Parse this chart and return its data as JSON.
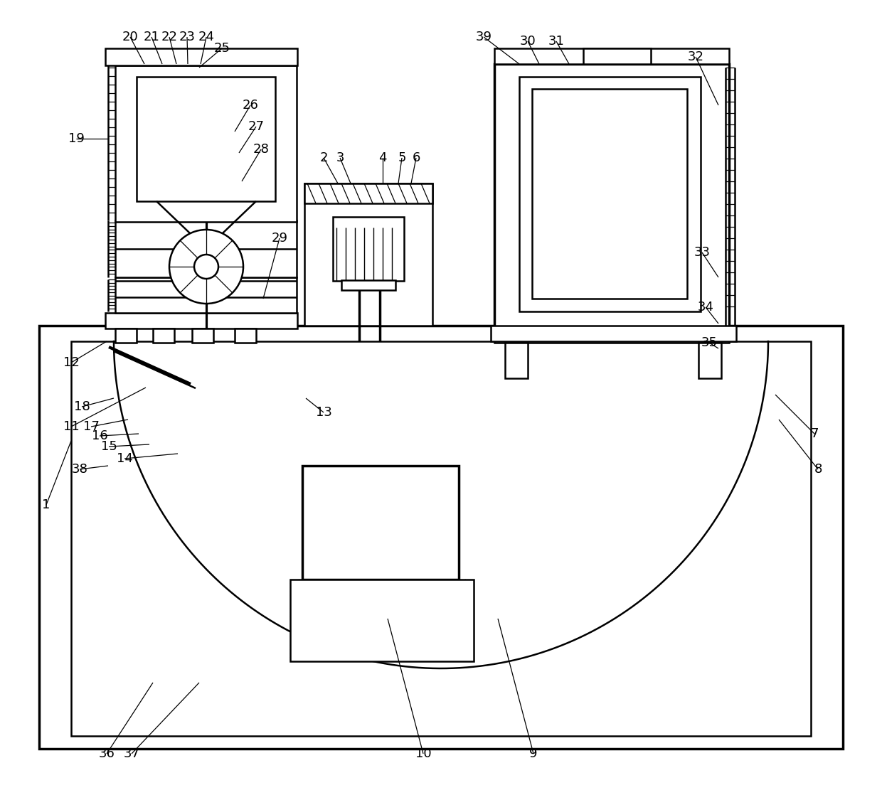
{
  "bg": "#ffffff",
  "lc": "#000000",
  "lw": 1.8,
  "tlw": 2.5,
  "fs": 13,
  "fw": 12.4,
  "fh": 11.11,
  "annotations": [
    [
      "1",
      65,
      710,
      100,
      620
    ],
    [
      "2",
      455,
      222,
      475,
      258
    ],
    [
      "3",
      478,
      222,
      493,
      258
    ],
    [
      "4",
      538,
      222,
      538,
      258
    ],
    [
      "5",
      565,
      222,
      560,
      258
    ],
    [
      "6",
      585,
      222,
      578,
      258
    ],
    [
      "7",
      1145,
      610,
      1090,
      555
    ],
    [
      "8",
      1150,
      660,
      1095,
      590
    ],
    [
      "9",
      750,
      1060,
      700,
      870
    ],
    [
      "10",
      595,
      1060,
      545,
      870
    ],
    [
      "11",
      100,
      600,
      205,
      545
    ],
    [
      "12",
      100,
      510,
      150,
      480
    ],
    [
      "13",
      455,
      580,
      430,
      560
    ],
    [
      "14",
      175,
      645,
      250,
      638
    ],
    [
      "15",
      153,
      628,
      210,
      625
    ],
    [
      "16",
      140,
      613,
      195,
      610
    ],
    [
      "17",
      128,
      600,
      180,
      590
    ],
    [
      "18",
      115,
      572,
      160,
      560
    ],
    [
      "19",
      107,
      195,
      152,
      195
    ],
    [
      "20",
      183,
      52,
      203,
      90
    ],
    [
      "21",
      213,
      52,
      228,
      90
    ],
    [
      "22",
      238,
      52,
      248,
      90
    ],
    [
      "23",
      263,
      52,
      264,
      90
    ],
    [
      "24",
      290,
      52,
      282,
      90
    ],
    [
      "25",
      312,
      68,
      280,
      95
    ],
    [
      "26",
      352,
      148,
      330,
      185
    ],
    [
      "27",
      360,
      178,
      336,
      215
    ],
    [
      "28",
      367,
      210,
      340,
      255
    ],
    [
      "29",
      393,
      335,
      370,
      420
    ],
    [
      "30",
      742,
      58,
      758,
      90
    ],
    [
      "31",
      782,
      58,
      800,
      90
    ],
    [
      "32",
      978,
      80,
      1010,
      148
    ],
    [
      "33",
      987,
      355,
      1010,
      390
    ],
    [
      "34",
      992,
      432,
      1010,
      455
    ],
    [
      "35",
      997,
      482,
      1010,
      490
    ],
    [
      "36",
      150,
      1060,
      215,
      960
    ],
    [
      "37",
      185,
      1060,
      280,
      960
    ],
    [
      "38",
      112,
      660,
      152,
      655
    ],
    [
      "39",
      680,
      52,
      730,
      90
    ]
  ]
}
